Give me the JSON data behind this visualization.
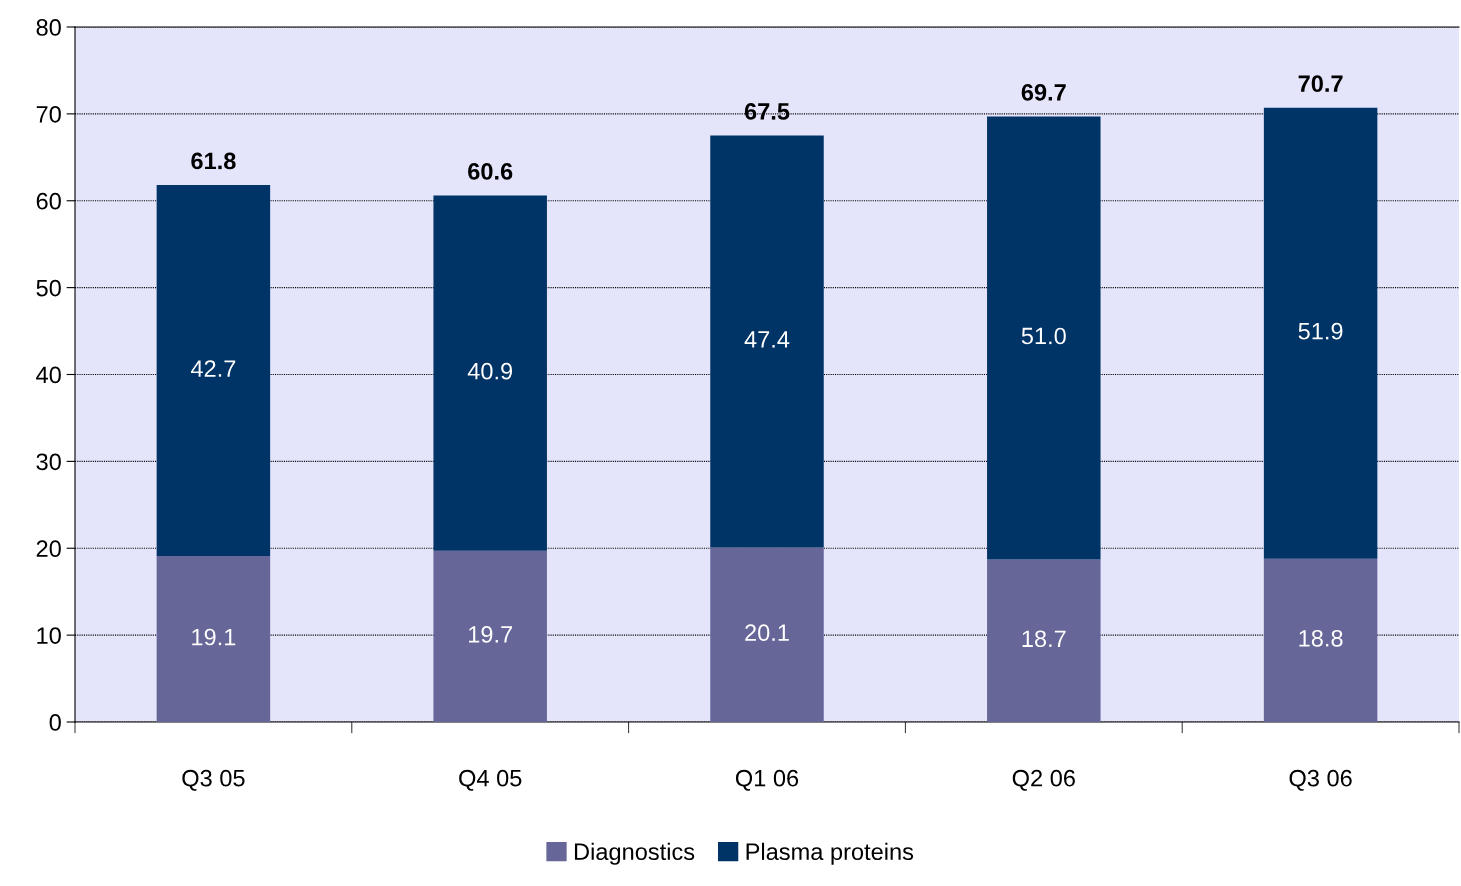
{
  "chart_data": {
    "type": "bar",
    "stacked": true,
    "categories": [
      "Q3 05",
      "Q4 05",
      "Q1 06",
      "Q2 06",
      "Q3 06"
    ],
    "series": [
      {
        "name": "Diagnostics",
        "color": "#666699",
        "values": [
          19.1,
          19.7,
          20.1,
          18.7,
          18.8
        ],
        "value_labels": [
          "19.1",
          "19.7",
          "20.1",
          "18.7",
          "18.8"
        ]
      },
      {
        "name": "Plasma proteins",
        "color": "#003366",
        "values": [
          42.7,
          40.9,
          47.4,
          51.0,
          51.9
        ],
        "value_labels": [
          "42.7",
          "40.9",
          "47.4",
          "51.0",
          "51.9"
        ]
      }
    ],
    "totals": [
      "61.8",
      "60.6",
      "67.5",
      "69.7",
      "70.7"
    ],
    "ylim": [
      0,
      80
    ],
    "yticks": [
      0,
      10,
      20,
      30,
      40,
      50,
      60,
      70,
      80
    ],
    "grid": "y",
    "legend": "bottom"
  }
}
